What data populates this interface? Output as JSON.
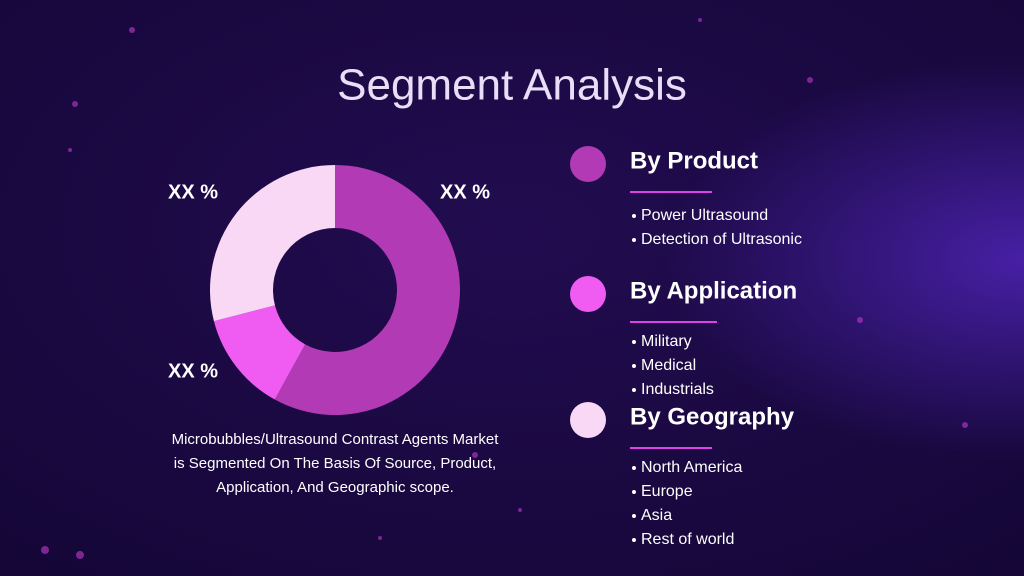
{
  "title": "Segment Analysis",
  "chart_data": {
    "type": "donut",
    "values": [
      58,
      13,
      29
    ],
    "value_labels": [
      "XX %",
      "XX %",
      "XX %"
    ],
    "colors": [
      "#b23ab5",
      "#f05cf2",
      "#f9d8f6"
    ]
  },
  "caption": [
    "Microbubbles/Ultrasound Contrast Agents Market",
    "is Segmented On The Basis Of Source, Product,",
    "Application, And Geographic scope."
  ],
  "segments": [
    {
      "title": "By Product",
      "color": "#b23ab5",
      "items": [
        "Power Ultrasound",
        "Detection of Ultrasonic"
      ]
    },
    {
      "title": "By Application",
      "color": "#f05cf2",
      "items": [
        "Military",
        "Medical",
        "Industrials"
      ]
    },
    {
      "title": "By Geography",
      "color": "#f9d8f6",
      "items": [
        "North America",
        "Europe",
        "Asia",
        "Rest of world"
      ]
    }
  ]
}
